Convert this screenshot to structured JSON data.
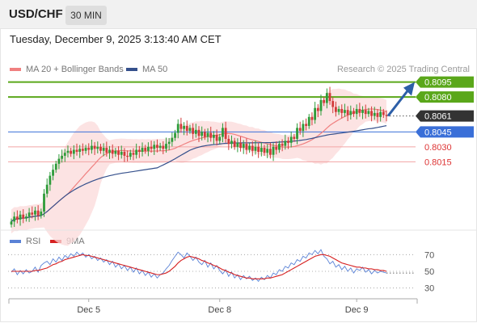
{
  "header": {
    "symbol": "USD/CHF",
    "timeframe": "30 MIN"
  },
  "datetime": "Tuesday, December 9, 2025 3:13:40 AM CET",
  "legend": {
    "ma20_label": "MA 20 + Bollinger Bands",
    "ma50_label": "MA 50",
    "credit": "Research © 2025 Trading Central"
  },
  "rsi_legend": {
    "rsi_label": "RSI",
    "ma_label": "9MA"
  },
  "colors": {
    "bull": "#2e9c3a",
    "bear": "#d23a3a",
    "ma20": "#f08080",
    "band": "#fbd9d9",
    "ma50": "#35508c",
    "resistance": "#5aa71a",
    "support": "#3a6fd8",
    "support_weak": "#f2a4a4",
    "rsi": "#5a82d6",
    "rsi_ma": "#d62020",
    "arrow": "#2d5fa8",
    "current": "#333333"
  },
  "chart_data": [
    {
      "type": "candlestick",
      "ylim": [
        0.7948,
        0.8102
      ],
      "x_ticks": [
        {
          "label": "Dec 5",
          "index": 26
        },
        {
          "label": "Dec 8",
          "index": 70
        },
        {
          "label": "Dec 9",
          "index": 116
        }
      ],
      "levels": [
        {
          "label": "0.8095",
          "value": 0.8095,
          "kind": "resistance"
        },
        {
          "label": "0.8080",
          "value": 0.808,
          "kind": "resistance"
        },
        {
          "label": "0.8061",
          "value": 0.8061,
          "kind": "current"
        },
        {
          "label": "0.8045",
          "value": 0.8045,
          "kind": "support"
        },
        {
          "label": "0.8030",
          "value": 0.803,
          "kind": "support_weak"
        },
        {
          "label": "0.8015",
          "value": 0.8015,
          "kind": "support_weak"
        }
      ],
      "closes": [
        0.7955,
        0.796,
        0.7957,
        0.7962,
        0.7958,
        0.796,
        0.7964,
        0.7962,
        0.7966,
        0.7961,
        0.7965,
        0.7983,
        0.7992,
        0.8001,
        0.8007,
        0.8013,
        0.8018,
        0.8021,
        0.8024,
        0.8026,
        0.8023,
        0.8027,
        0.8025,
        0.8028,
        0.8026,
        0.8029,
        0.8027,
        0.8031,
        0.8028,
        0.803,
        0.8026,
        0.8029,
        0.8024,
        0.8027,
        0.8023,
        0.8026,
        0.8022,
        0.8025,
        0.8021,
        0.802,
        0.8024,
        0.8022,
        0.8027,
        0.8025,
        0.8029,
        0.8026,
        0.803,
        0.8028,
        0.8032,
        0.8029,
        0.8031,
        0.8028,
        0.8033,
        0.8035,
        0.8039,
        0.8044,
        0.8053,
        0.8048,
        0.8051,
        0.8046,
        0.8049,
        0.8043,
        0.8047,
        0.8041,
        0.8045,
        0.804,
        0.8044,
        0.8039,
        0.8042,
        0.8036,
        0.804,
        0.8049,
        0.8038,
        0.8033,
        0.8036,
        0.803,
        0.8034,
        0.8029,
        0.8033,
        0.8027,
        0.8031,
        0.8026,
        0.803,
        0.8025,
        0.8029,
        0.8024,
        0.8028,
        0.8022,
        0.803,
        0.8027,
        0.8033,
        0.8031,
        0.8036,
        0.8034,
        0.804,
        0.8038,
        0.8049,
        0.8046,
        0.8053,
        0.8051,
        0.806,
        0.8057,
        0.8069,
        0.8066,
        0.8077,
        0.8074,
        0.8084,
        0.8076,
        0.807,
        0.8065,
        0.8068,
        0.8064,
        0.8067,
        0.8062,
        0.8066,
        0.8063,
        0.8068,
        0.8064,
        0.8067,
        0.8063,
        0.8066,
        0.8061,
        0.8064,
        0.806,
        0.8065,
        0.8062,
        0.8061
      ]
    },
    {
      "type": "line",
      "ylim": [
        20,
        80
      ],
      "y_ticks": [
        {
          "label": "70",
          "value": 70
        },
        {
          "label": "50",
          "value": 50
        },
        {
          "label": "30",
          "value": 30
        }
      ],
      "rsi": [
        49,
        53,
        46,
        51,
        47,
        52,
        48,
        50,
        55,
        49,
        57,
        60,
        62,
        58,
        65,
        61,
        67,
        63,
        69,
        66,
        71,
        68,
        73,
        69,
        72,
        67,
        70,
        65,
        68,
        63,
        66,
        61,
        64,
        58,
        62,
        55,
        59,
        53,
        57,
        51,
        55,
        49,
        54,
        47,
        51,
        45,
        49,
        43,
        47,
        42,
        46,
        48,
        53,
        57,
        63,
        68,
        73,
        70,
        66,
        72,
        68,
        63,
        67,
        61,
        58,
        63,
        55,
        60,
        53,
        57,
        51,
        47,
        52,
        44,
        49,
        42,
        46,
        40,
        45,
        41,
        44,
        39,
        42,
        38,
        43,
        40,
        45,
        42,
        48,
        46,
        52,
        50,
        56,
        54,
        60,
        58,
        64,
        62,
        68,
        66,
        72,
        70,
        75,
        71,
        76,
        68,
        65,
        59,
        62,
        55,
        58,
        52,
        56,
        50,
        54,
        48,
        53,
        51,
        55,
        49,
        52,
        47,
        51,
        48,
        50,
        49,
        48
      ],
      "rsi_ma": [
        50,
        50,
        50,
        50,
        50,
        50,
        50,
        50,
        51,
        51,
        52,
        53,
        54,
        56,
        58,
        59,
        61,
        62,
        64,
        65,
        66,
        67,
        68,
        69,
        70,
        69,
        69,
        68,
        67,
        66,
        65,
        64,
        63,
        62,
        61,
        60,
        59,
        58,
        57,
        56,
        55,
        54,
        53,
        52,
        51,
        50,
        49,
        48,
        47,
        46,
        46,
        47,
        48,
        50,
        53,
        56,
        60,
        63,
        65,
        67,
        68,
        67,
        66,
        65,
        63,
        62,
        60,
        59,
        57,
        56,
        54,
        52,
        51,
        49,
        48,
        46,
        45,
        44,
        43,
        42,
        42,
        41,
        41,
        41,
        41,
        41,
        42,
        42,
        43,
        44,
        45,
        46,
        48,
        50,
        52,
        54,
        56,
        58,
        60,
        62,
        64,
        66,
        68,
        69,
        70,
        70,
        69,
        68,
        66,
        64,
        62,
        60,
        59,
        58,
        57,
        56,
        55,
        55,
        54,
        54,
        53,
        53,
        52,
        52,
        51,
        51,
        50
      ]
    }
  ]
}
